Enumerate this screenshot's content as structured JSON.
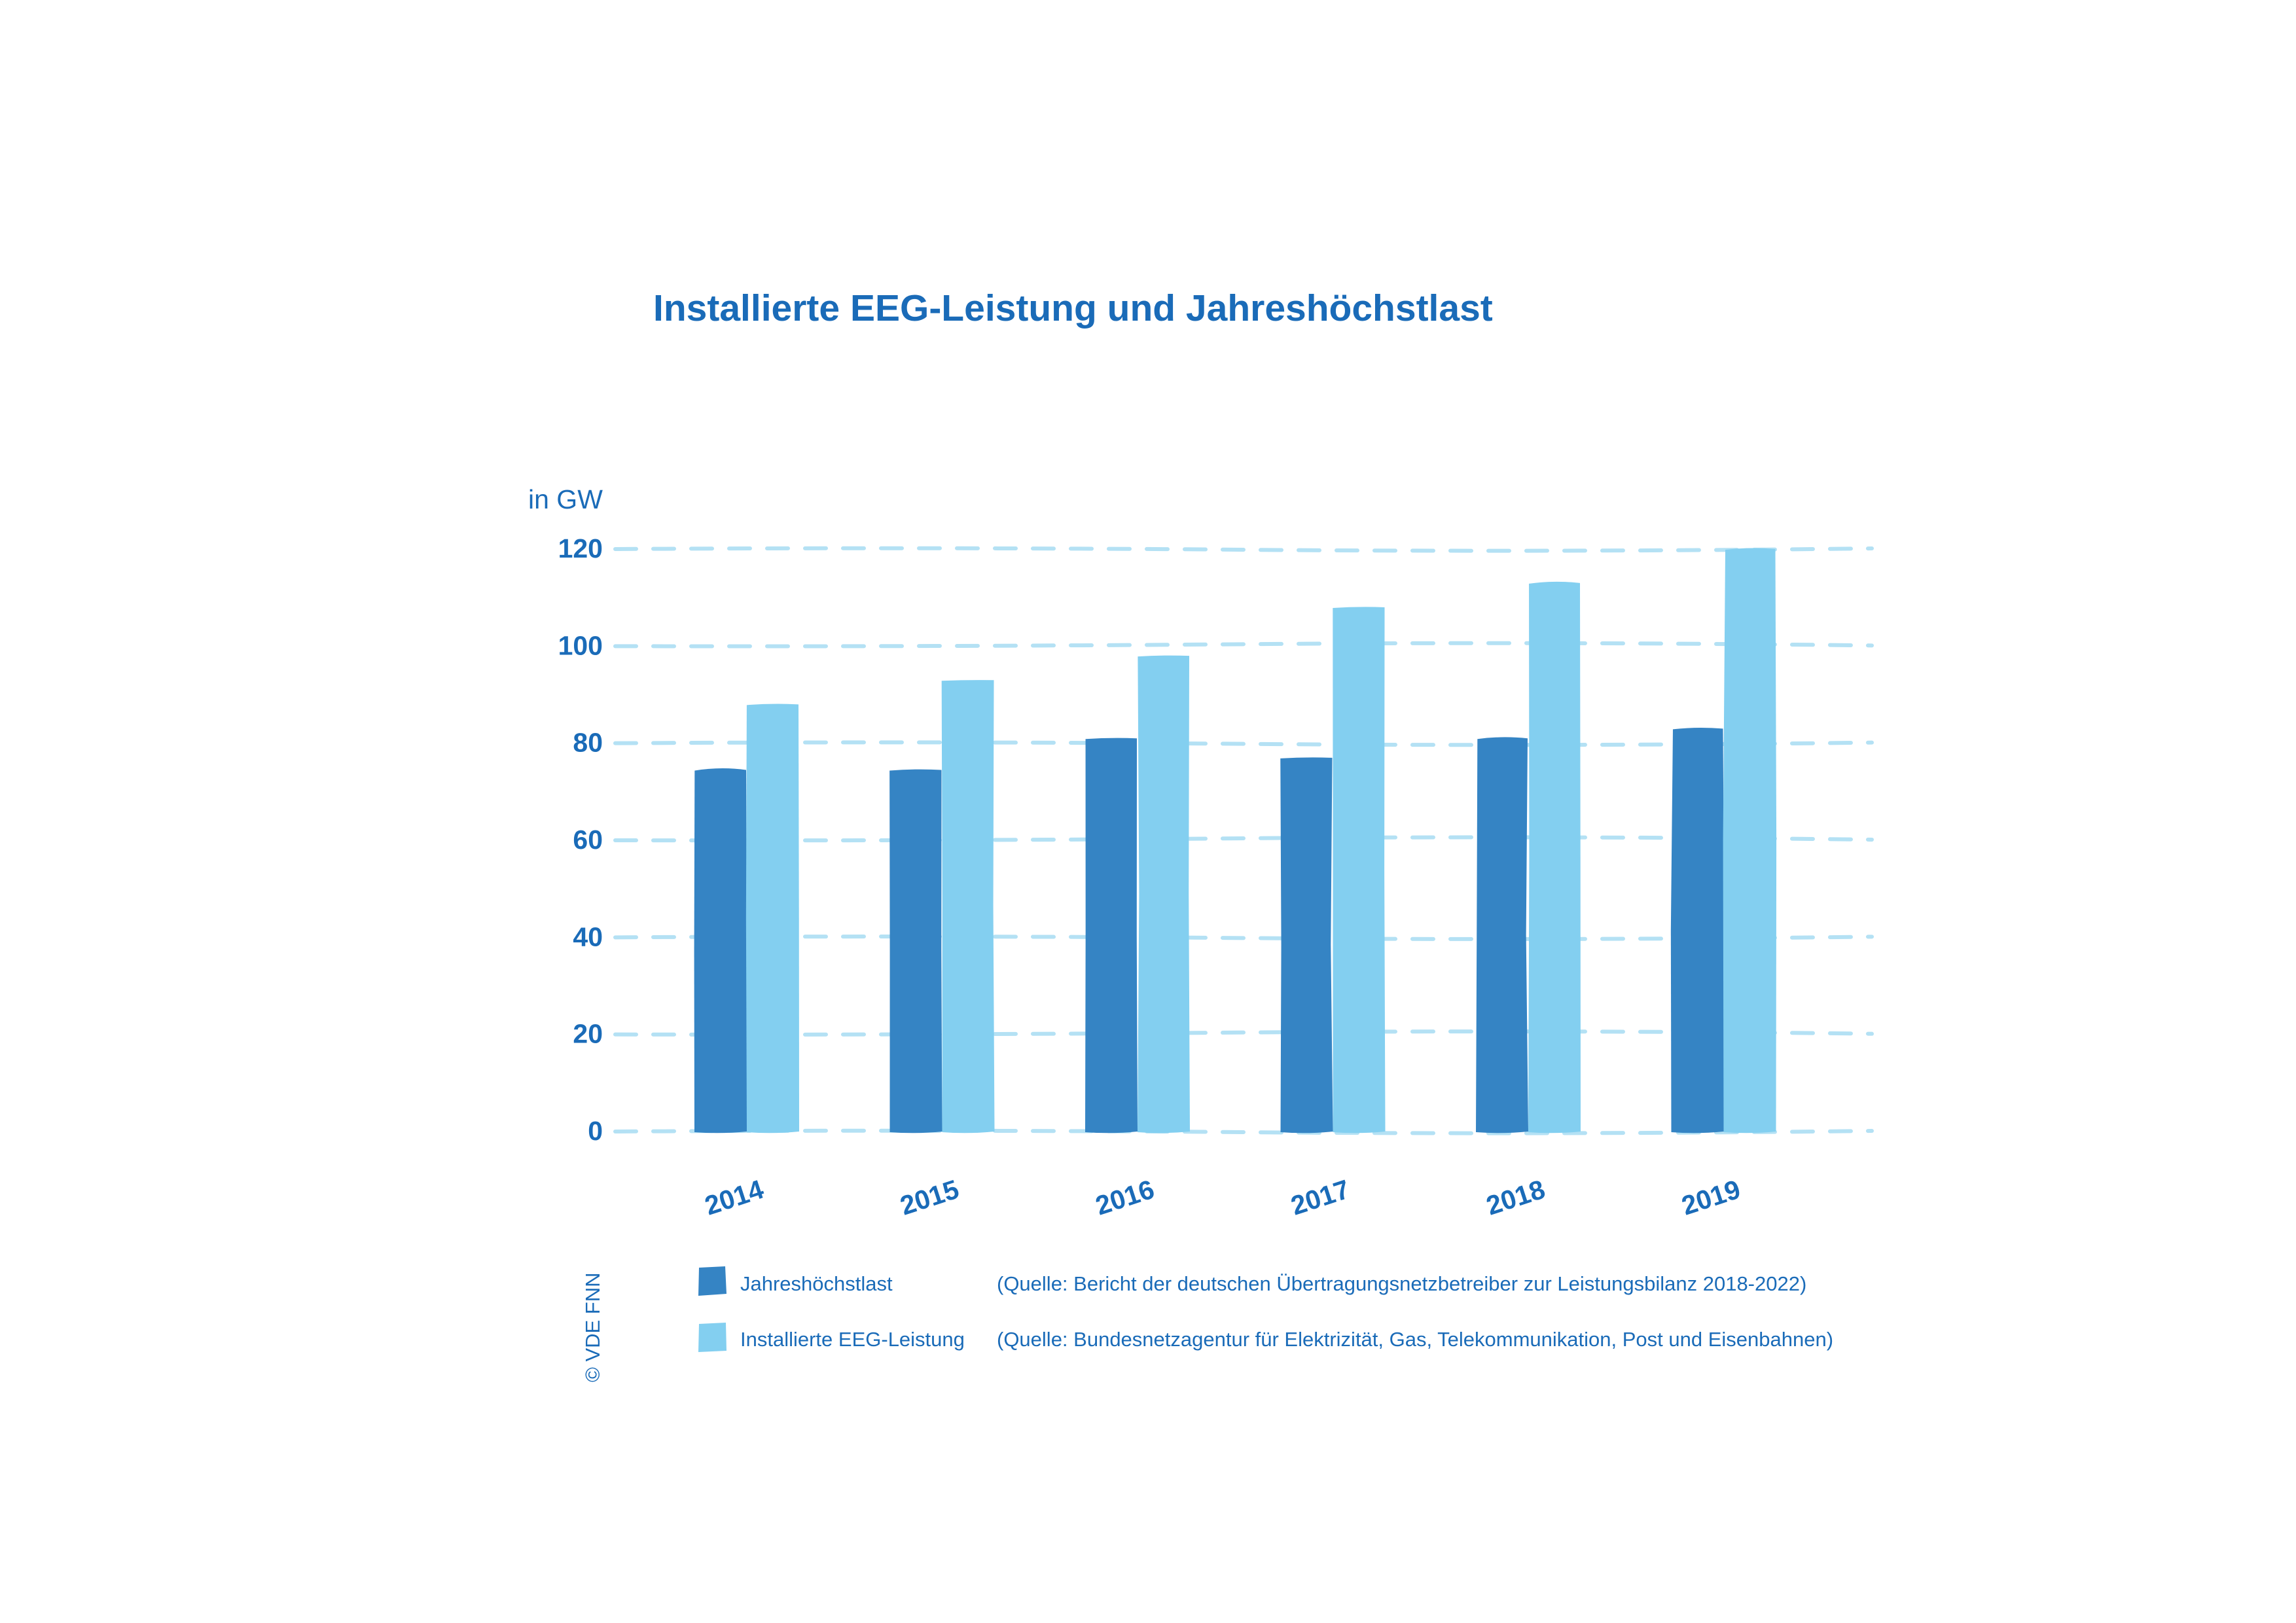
{
  "colors": {
    "text": "#1a6bb8",
    "series_dark": "#3584c4",
    "series_light": "#83cff0",
    "grid": "#b4e1f4"
  },
  "chart_data": {
    "type": "bar",
    "title": "Installierte EEG-Leistung und Jahreshöchstlast",
    "ylabel": "in GW",
    "xlabel": "",
    "categories": [
      "2014",
      "2015",
      "2016",
      "2017",
      "2018",
      "2019"
    ],
    "series": [
      {
        "name": "Jahreshöchstlast",
        "values": [
          74.5,
          74.5,
          81,
          77,
          81,
          83
        ],
        "color": "#3584c4"
      },
      {
        "name": "Installierte EEG-Leistung",
        "values": [
          88,
          93,
          98,
          108,
          113,
          120
        ],
        "color": "#83cff0"
      }
    ],
    "ylim": [
      0,
      120
    ],
    "yticks": [
      "0",
      "20",
      "40",
      "60",
      "80",
      "100",
      "120"
    ],
    "grid": true,
    "grid_style": "dashed",
    "legend_position": "bottom"
  },
  "legend": {
    "items": [
      {
        "label": "Jahreshöchstlast",
        "source": "(Quelle: Bericht der deutschen Übertragungsnetzbetreiber zur Leistungsbilanz 2018-2022)"
      },
      {
        "label": "Installierte EEG-Leistung",
        "source": "(Quelle: Bundesnetzagentur für Elektrizität, Gas, Telekommunikation, Post und Eisenbahnen)"
      }
    ]
  },
  "copyright": "© VDE FNN"
}
